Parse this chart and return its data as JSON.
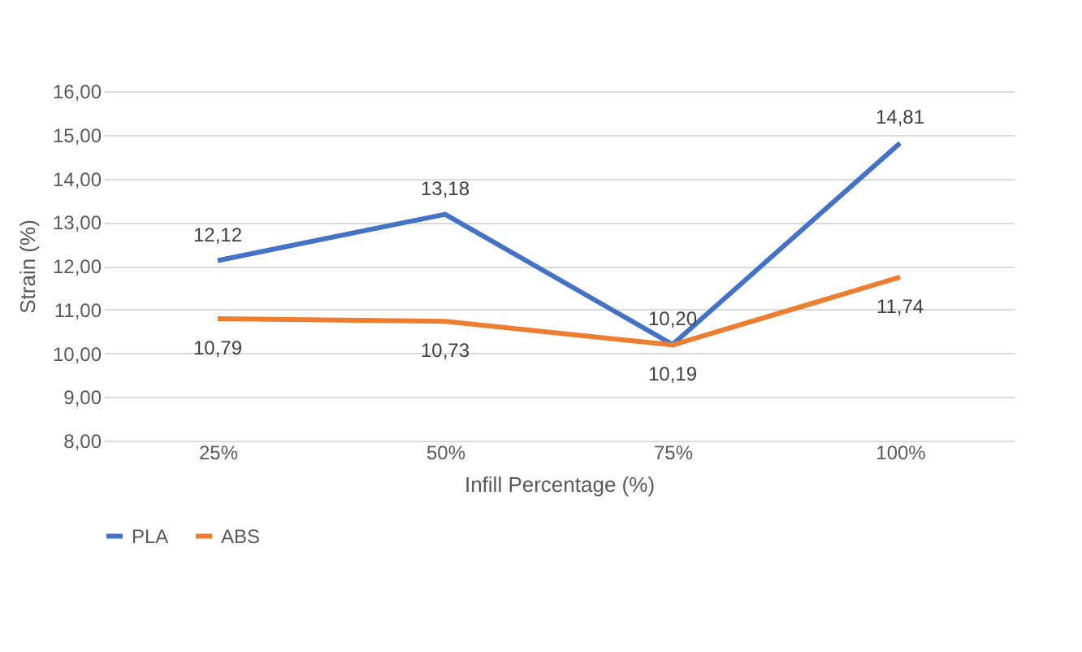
{
  "chart_data": {
    "type": "line",
    "xlabel": "Infill Percentage (%)",
    "ylabel": "Strain (%)",
    "categories": [
      "25%",
      "50%",
      "75%",
      "100%"
    ],
    "series": [
      {
        "name": "PLA",
        "color": "#4472c4",
        "values": [
          12.12,
          13.18,
          10.2,
          14.81
        ],
        "value_labels": [
          "12,12",
          "13,18",
          "10,20",
          "14,81"
        ]
      },
      {
        "name": "ABS",
        "color": "#ed7d31",
        "values": [
          10.79,
          10.73,
          10.19,
          11.74
        ],
        "value_labels": [
          "10,79",
          "10,73",
          "10,19",
          "11,74"
        ]
      }
    ],
    "ylim": [
      8,
      16
    ],
    "yticks": [
      {
        "value": 8,
        "label": "8,00"
      },
      {
        "value": 9,
        "label": "9,00"
      },
      {
        "value": 10,
        "label": "10,00"
      },
      {
        "value": 11,
        "label": "11,00"
      },
      {
        "value": 12,
        "label": "12,00"
      },
      {
        "value": 13,
        "label": "13,00"
      },
      {
        "value": 14,
        "label": "14,00"
      },
      {
        "value": 15,
        "label": "15,00"
      },
      {
        "value": 16,
        "label": "16,00"
      }
    ],
    "grid": "y",
    "legend": "bottom",
    "marker": "none",
    "line_style": "solid"
  }
}
